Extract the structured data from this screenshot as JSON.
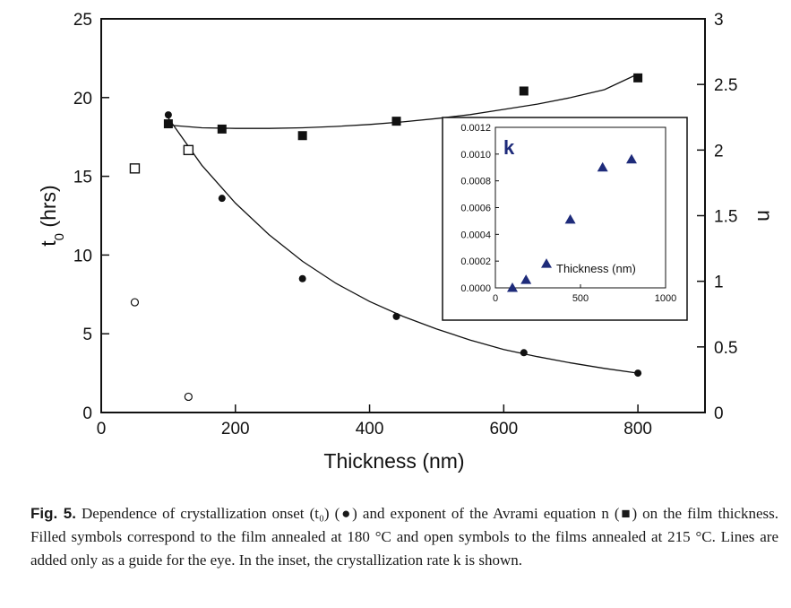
{
  "figure": {
    "caption": {
      "number": "Fig. 5.",
      "text": "Dependence of crystallization onset (t₀) (●) and exponent of the Avrami equation n (■) on the film thickness. Filled symbols correspond to the film annealed at 180 °C and open symbols to the films annealed at 215 °C. Lines are added only as a guide for the eye. In the inset, the crystallization rate k is shown."
    }
  },
  "chart_data": [
    {
      "type": "scatter",
      "xlabel": "Thickness (nm)",
      "ylabel": "t0 (hrs)",
      "y2label": "n",
      "xlim": [
        0,
        900
      ],
      "ylim": [
        0,
        25
      ],
      "y2lim": [
        0,
        3
      ],
      "xticks": [
        0,
        200,
        400,
        600,
        800
      ],
      "yticks": [
        0,
        5,
        10,
        15,
        20,
        25
      ],
      "y2ticks": [
        0,
        0.5,
        1,
        1.5,
        2,
        2.5,
        3
      ],
      "grid": false,
      "series": [
        {
          "marker": "filled-circle",
          "axis": "left",
          "x": [
            100,
            180,
            300,
            440,
            630,
            800
          ],
          "y": [
            18.9,
            13.6,
            8.5,
            6.1,
            3.8,
            2.5
          ]
        },
        {
          "marker": "open-circle",
          "axis": "left",
          "x": [
            50,
            130
          ],
          "y": [
            7.0,
            1.0
          ]
        },
        {
          "marker": "filled-square",
          "axis": "right",
          "x": [
            100,
            180,
            300,
            440,
            630,
            800
          ],
          "y": [
            2.2,
            2.16,
            2.11,
            2.22,
            2.45,
            2.55
          ]
        },
        {
          "marker": "open-square",
          "axis": "right",
          "x": [
            50,
            130
          ],
          "y": [
            1.86,
            2.0
          ]
        }
      ],
      "guide_lines": [
        {
          "axis": "left",
          "x": [
            100,
            150,
            200,
            250,
            300,
            350,
            400,
            450,
            500,
            550,
            600,
            650,
            700,
            750,
            800
          ],
          "y": [
            18.7,
            15.7,
            13.3,
            11.3,
            9.6,
            8.2,
            7.05,
            6.1,
            5.3,
            4.6,
            4.0,
            3.55,
            3.15,
            2.8,
            2.5
          ]
        },
        {
          "axis": "right",
          "x": [
            100,
            150,
            200,
            250,
            300,
            350,
            400,
            450,
            500,
            550,
            600,
            650,
            700,
            750,
            800
          ],
          "y": [
            2.19,
            2.17,
            2.165,
            2.165,
            2.17,
            2.18,
            2.195,
            2.215,
            2.24,
            2.27,
            2.31,
            2.35,
            2.4,
            2.46,
            2.58
          ]
        }
      ]
    },
    {
      "type": "scatter",
      "inset": true,
      "label": "k",
      "xlabel": "Thickness (nm)",
      "xlim": [
        0,
        1000
      ],
      "ylim": [
        0,
        0.0012
      ],
      "xticks": [
        0,
        500,
        1000
      ],
      "yticks": [
        "0.0000",
        "0.0002",
        "0.0004",
        "0.0006",
        "0.0008",
        "0.0010",
        "0.0012"
      ],
      "series": [
        {
          "marker": "filled-triangle",
          "color": "#1e2b7a",
          "x": [
            100,
            180,
            300,
            440,
            630,
            800
          ],
          "y": [
            0.0,
            6e-05,
            0.00018,
            0.00051,
            0.0009,
            0.00096
          ]
        }
      ]
    }
  ]
}
